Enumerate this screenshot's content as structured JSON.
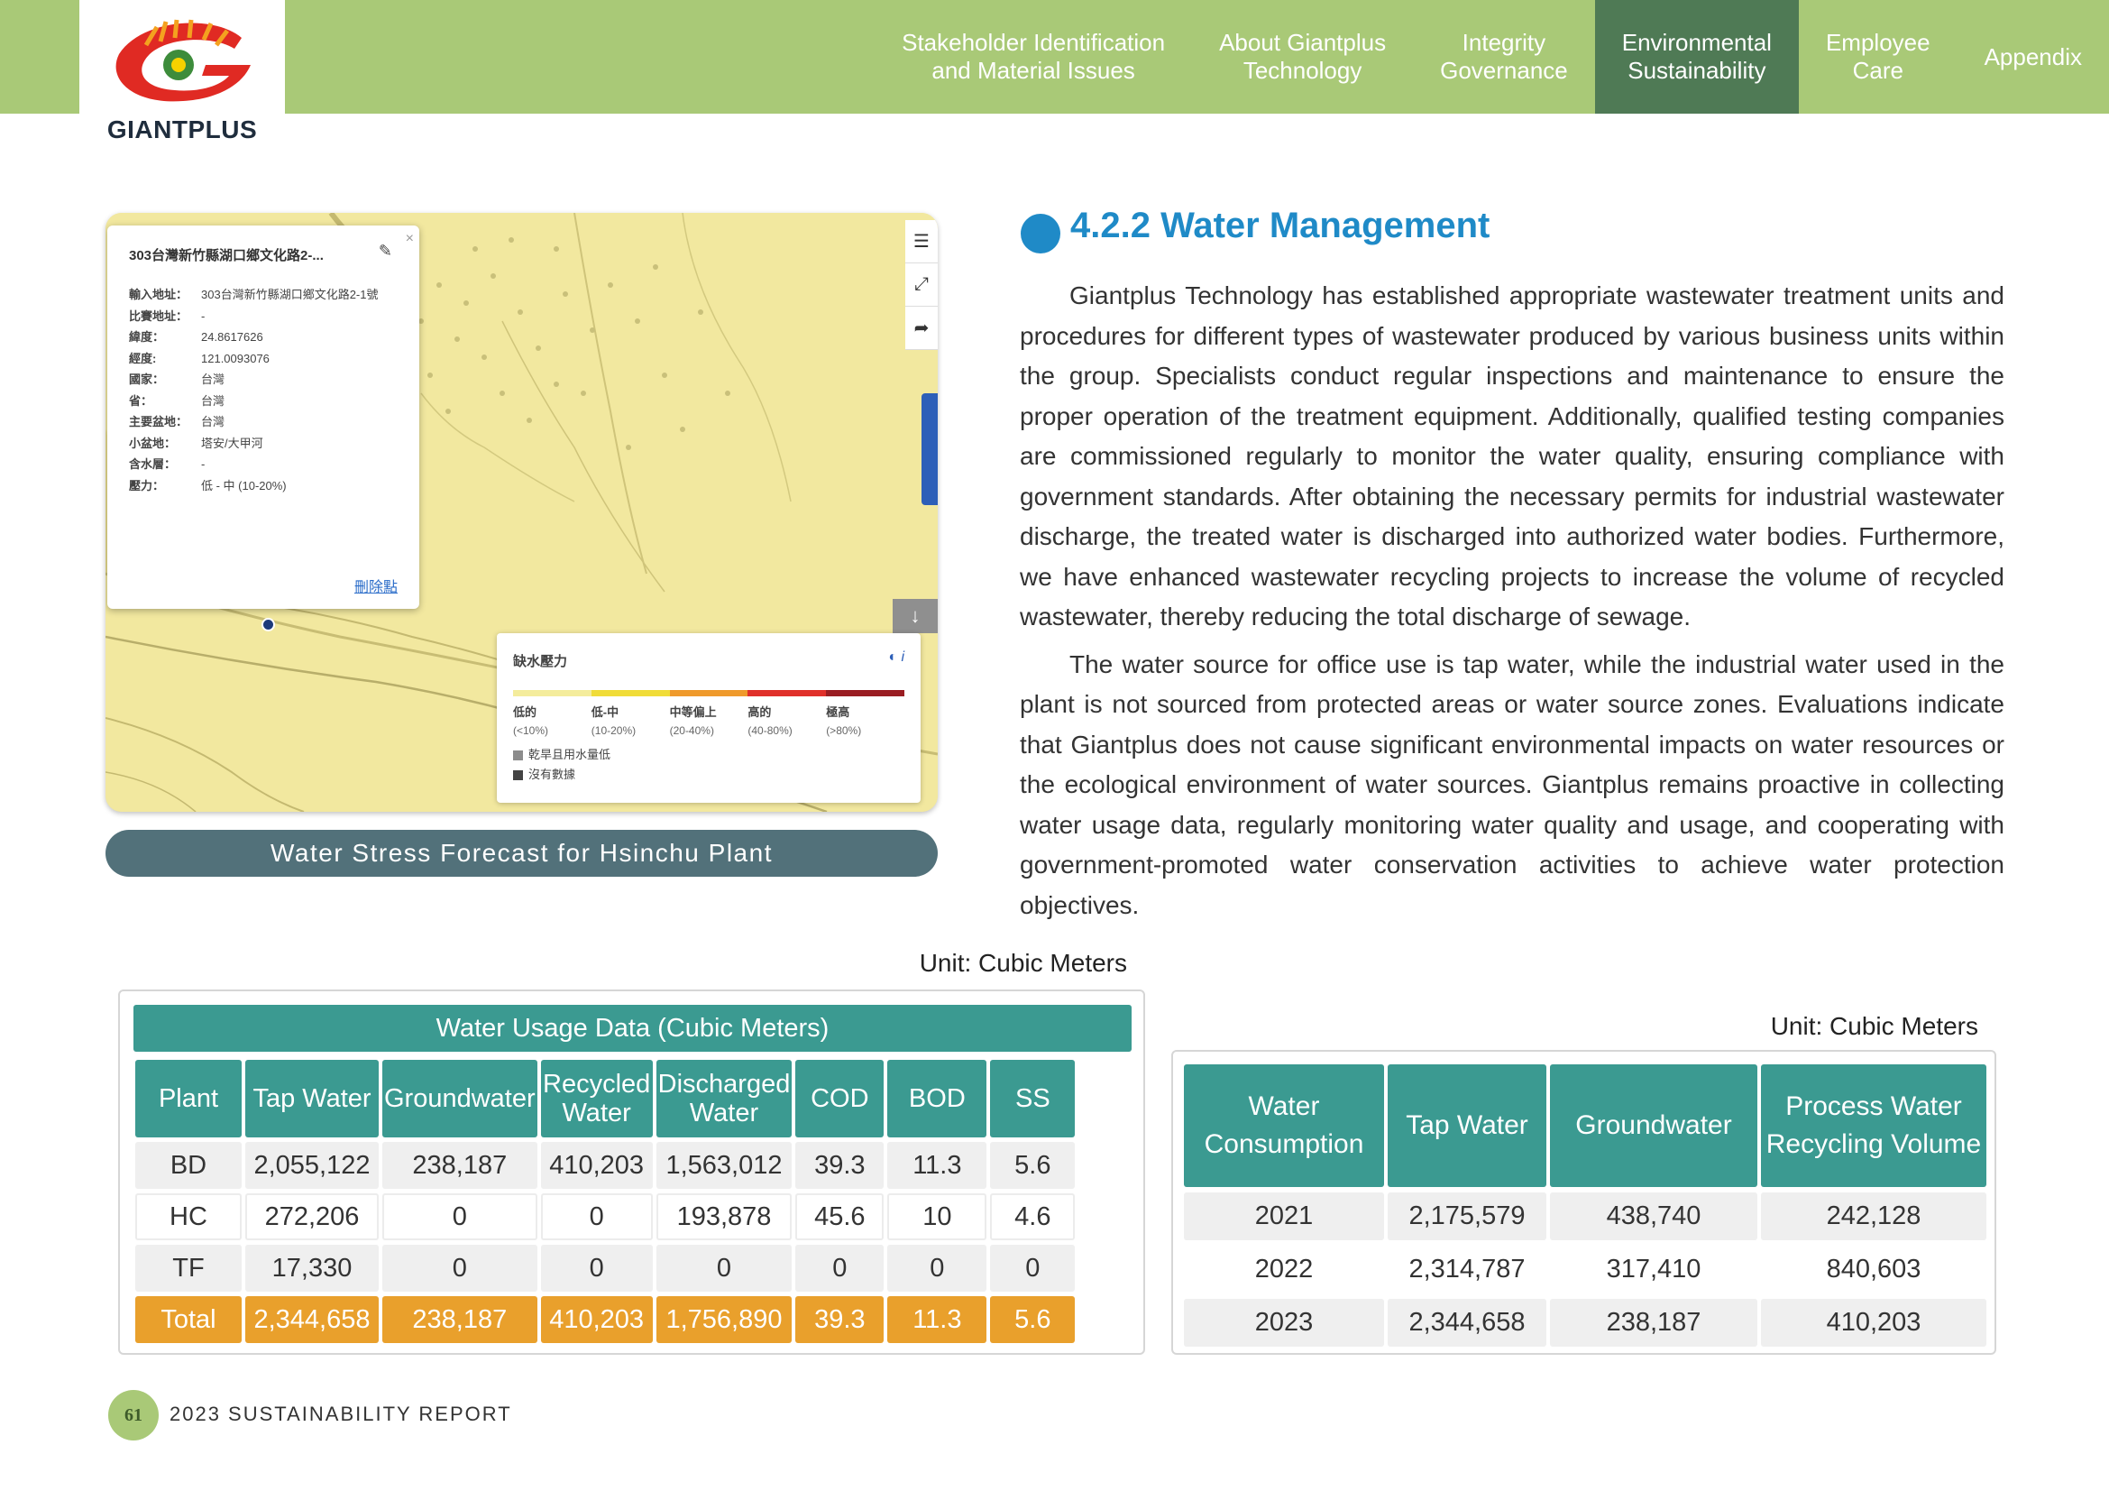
{
  "brand": {
    "logo_text": "GIANTPLUS"
  },
  "nav": [
    {
      "label": "Stakeholder Identification\nand Material Issues",
      "active": false
    },
    {
      "label": "About Giantplus\nTechnology",
      "active": false
    },
    {
      "label": "Integrity\nGovernance",
      "active": false
    },
    {
      "label": "Environmental\nSustainability",
      "active": true
    },
    {
      "label": "Employee\nCare",
      "active": false
    },
    {
      "label": "Appendix",
      "active": false
    }
  ],
  "map": {
    "caption": "Water Stress Forecast for Hsinchu Plant",
    "popup": {
      "title": "303台灣新竹縣湖口鄉文化路2-...",
      "delete_label": "刪除點",
      "rows": [
        {
          "key": "輸入地址：",
          "value": "303台灣新竹縣湖口鄉文化路2-1號"
        },
        {
          "key": "比賽地址：",
          "value": "-"
        },
        {
          "key": "緯度：",
          "value": "24.8617626"
        },
        {
          "key": "經度:",
          "value": "121.0093076"
        },
        {
          "key": "國家：",
          "value": "台灣"
        },
        {
          "key": "省：",
          "value": "台灣"
        },
        {
          "key": "主要盆地：",
          "value": "台灣"
        },
        {
          "key": "小盆地：",
          "value": "塔安/大甲河"
        },
        {
          "key": "含水層：",
          "value": "-"
        },
        {
          "key": "壓力：",
          "value": "低 - 中 (10-20%)"
        }
      ]
    },
    "legend": {
      "title": "缺水壓力",
      "levels": [
        {
          "label": "低的",
          "range": "(<10%)",
          "color": "#f4ec9c"
        },
        {
          "label": "低-中",
          "range": "(10-20%)",
          "color": "#f0dc38"
        },
        {
          "label": "中等偏上",
          "range": "(20-40%)",
          "color": "#ef9a2c"
        },
        {
          "label": "高的",
          "range": "(40-80%)",
          "color": "#e0302a"
        },
        {
          "label": "極高",
          "range": "(>80%)",
          "color": "#9a1d22"
        }
      ],
      "notes": [
        {
          "label": "乾旱且用水量低",
          "color": "#8c8c8c"
        },
        {
          "label": "沒有數據",
          "color": "#444444"
        }
      ]
    }
  },
  "section": {
    "title": "4.2.2 Water Management",
    "paragraphs": [
      "Giantplus Technology has established appropriate wastewater treatment units and procedures for different types of wastewater produced by various business units within the group. Specialists conduct regular inspections and maintenance to ensure the proper operation of the treatment equipment. Additionally, qualified testing companies are commissioned regularly to monitor the water quality, ensuring compliance with government standards. After obtaining the necessary permits for industrial wastewater discharge, the treated water is discharged into authorized water bodies. Furthermore, we have enhanced wastewater recycling projects to increase the volume of recycled wastewater, thereby reducing the total discharge of sewage.",
      "The water source for office use is tap water, while the industrial water used in the plant is not sourced from protected areas or water source zones. Evaluations indicate that Giantplus does not cause significant environmental impacts on water resources or the ecological environment of water sources. Giantplus remains proactive in collecting water usage data, regularly monitoring water quality and usage, and cooperating with government-promoted water conservation activities to achieve water protection objectives."
    ]
  },
  "usage_table": {
    "unit": "Unit: Cubic Meters",
    "title": "Water Usage Data (Cubic Meters)",
    "headers": [
      "Plant",
      "Tap Water",
      "Groundwater",
      "Recycled Water",
      "Discharged Water",
      "COD",
      "BOD",
      "SS"
    ],
    "rows": [
      [
        "BD",
        "2,055,122",
        "238,187",
        "410,203",
        "1,563,012",
        "39.3",
        "11.3",
        "5.6"
      ],
      [
        "HC",
        "272,206",
        "0",
        "0",
        "193,878",
        "45.6",
        "10",
        "4.6"
      ],
      [
        "TF",
        "17,330",
        "0",
        "0",
        "0",
        "0",
        "0",
        "0"
      ]
    ],
    "total": [
      "Total",
      "2,344,658",
      "238,187",
      "410,203",
      "1,756,890",
      "39.3",
      "11.3",
      "5.6"
    ]
  },
  "consumption_table": {
    "unit": "Unit: Cubic Meters",
    "headers": [
      "Water Consumption",
      "Tap Water",
      "Groundwater",
      "Process Water Recycling Volume"
    ],
    "rows": [
      [
        "2021",
        "2,175,579",
        "438,740",
        "242,128"
      ],
      [
        "2022",
        "2,314,787",
        "317,410",
        "840,603"
      ],
      [
        "2023",
        "2,344,658",
        "238,187",
        "410,203"
      ]
    ]
  },
  "footer": {
    "page_number": "61",
    "report_title": "2023 SUSTAINABILITY REPORT"
  }
}
